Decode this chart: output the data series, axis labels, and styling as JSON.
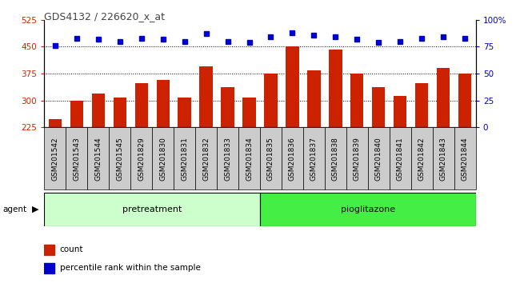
{
  "title": "GDS4132 / 226620_x_at",
  "samples": [
    "GSM201542",
    "GSM201543",
    "GSM201544",
    "GSM201545",
    "GSM201829",
    "GSM201830",
    "GSM201831",
    "GSM201832",
    "GSM201833",
    "GSM201834",
    "GSM201835",
    "GSM201836",
    "GSM201837",
    "GSM201838",
    "GSM201839",
    "GSM201840",
    "GSM201841",
    "GSM201842",
    "GSM201843",
    "GSM201844"
  ],
  "counts": [
    248,
    299,
    320,
    308,
    348,
    358,
    308,
    395,
    338,
    308,
    375,
    452,
    383,
    442,
    375,
    338,
    313,
    348,
    390,
    375
  ],
  "percentiles": [
    76,
    83,
    82,
    80,
    83,
    82,
    80,
    87,
    80,
    79,
    84,
    88,
    86,
    84,
    82,
    79,
    80,
    83,
    84,
    83
  ],
  "group1_count": 10,
  "group2_count": 10,
  "group1_label": "pretreatment",
  "group2_label": "pioglitazone",
  "agent_label": "agent",
  "ylim_left": [
    225,
    525
  ],
  "yticks_left": [
    225,
    300,
    375,
    450,
    525
  ],
  "ylim_right": [
    0,
    100
  ],
  "yticks_right": [
    0,
    25,
    50,
    75,
    100
  ],
  "bar_color": "#cc2200",
  "dot_color": "#0000cc",
  "bg_color": "#ffffff",
  "tick_cell_bg": "#cccccc",
  "group1_bg": "#ccffcc",
  "group2_bg": "#44ee44",
  "bar_width": 0.6,
  "legend_count_label": "count",
  "legend_pct_label": "percentile rank within the sample",
  "title_color": "#444444",
  "left_tick_color": "#cc2200",
  "right_tick_color": "#0000cc",
  "grid_yticks": [
    300,
    375,
    450
  ]
}
